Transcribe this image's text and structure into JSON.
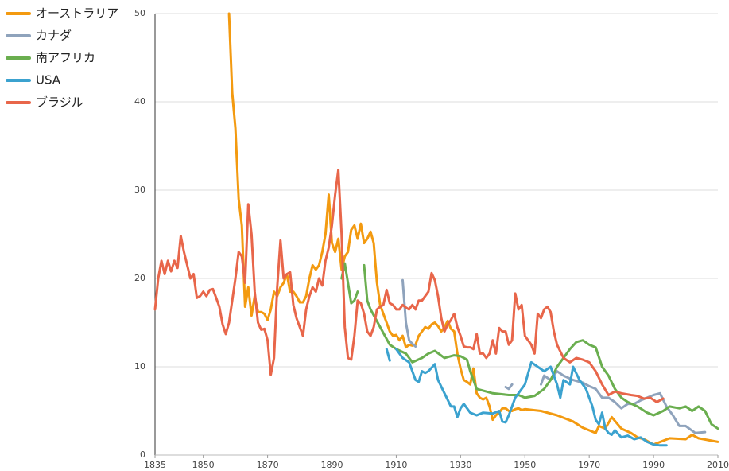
{
  "chart_data": {
    "type": "line",
    "xlim": [
      1835,
      2010
    ],
    "ylim": [
      0,
      50
    ],
    "xticks": [
      1835,
      1850,
      1870,
      1890,
      1910,
      1930,
      1950,
      1970,
      1990,
      2010
    ],
    "yticks": [
      0,
      10,
      20,
      30,
      40,
      50
    ],
    "grid": true,
    "legend": "top-left",
    "series": [
      {
        "name": "オーストラリア",
        "color": "#f39a10",
        "x": [
          1858,
          1859,
          1860,
          1861,
          1862,
          1863,
          1864,
          1865,
          1866,
          1867,
          1868,
          1869,
          1870,
          1871,
          1872,
          1873,
          1874,
          1875,
          1876,
          1877,
          1878,
          1879,
          1880,
          1881,
          1882,
          1883,
          1884,
          1885,
          1886,
          1887,
          1888,
          1889,
          1890,
          1891,
          1892,
          1893,
          1894,
          1895,
          1896,
          1897,
          1898,
          1899,
          1900,
          1901,
          1902,
          1903,
          1904,
          1905,
          1906,
          1907,
          1908,
          1909,
          1910,
          1911,
          1912,
          1913,
          1914,
          1915,
          1916,
          1917,
          1918,
          1919,
          1920,
          1921,
          1922,
          1923,
          1924,
          1925,
          1926,
          1927,
          1928,
          1929,
          1930,
          1931,
          1932,
          1933,
          1934,
          1935,
          1936,
          1937,
          1938,
          1939,
          1940,
          1941,
          1942,
          1943,
          1944,
          1945,
          1946,
          1947,
          1948,
          1949,
          1950,
          1955,
          1960,
          1965,
          1968,
          1970,
          1972,
          1973,
          1975,
          1977,
          1980,
          1983,
          1985,
          1987,
          1990,
          1995,
          2000,
          2002,
          2004,
          2010
        ],
        "values": [
          50,
          41,
          37,
          29,
          26,
          16.8,
          19,
          15.8,
          18,
          16.2,
          16.2,
          16,
          15.3,
          16.5,
          18.5,
          18,
          19,
          19.5,
          20.5,
          18.5,
          18.5,
          18,
          17.3,
          17.3,
          18,
          20,
          21.5,
          21,
          21.5,
          23,
          25,
          29.5,
          24,
          23,
          24.5,
          21,
          22.5,
          23,
          25.5,
          26,
          24.5,
          26.2,
          24,
          24.5,
          25.3,
          24,
          19.5,
          17,
          16,
          15,
          14,
          13.5,
          13.6,
          13,
          13.5,
          12.2,
          12.5,
          12.4,
          12.5,
          13.5,
          14,
          14.5,
          14.3,
          14.8,
          15,
          14.6,
          14,
          14.5,
          15.2,
          14.3,
          14,
          11.5,
          9.8,
          8.5,
          8.3,
          8,
          9.8,
          7,
          6.5,
          6.3,
          6.5,
          5.5,
          4,
          4.5,
          4.8,
          5.3,
          5.3,
          5,
          5,
          5.2,
          5.3,
          5.1,
          5.2,
          5,
          4.5,
          3.8,
          3.1,
          2.8,
          2.5,
          3.3,
          3,
          4.3,
          3,
          2.5,
          2,
          1.8,
          1.2,
          1.9,
          1.8,
          2.3,
          1.9,
          1.5
        ]
      },
      {
        "name": "カナダ",
        "color": "#8fa3bc",
        "x": [
          1912,
          1913,
          1914,
          1915,
          1916,
          1930,
          1944,
          1945,
          1946,
          1950,
          1955,
          1956,
          1958,
          1960,
          1962,
          1965,
          1968,
          1970,
          1972,
          1974,
          1976,
          1978,
          1980,
          1982,
          1984,
          1986,
          1988,
          1990,
          1992,
          1994,
          1996,
          1998,
          2000,
          2003,
          2006
        ],
        "values": [
          19.8,
          15,
          13,
          12.6,
          12.3,
          null,
          7.7,
          7.5,
          8,
          null,
          8,
          9,
          8.5,
          9.5,
          9,
          8.5,
          8.2,
          7.8,
          7.5,
          6.5,
          6.5,
          6,
          5.3,
          5.8,
          5.8,
          6.2,
          6.5,
          6.8,
          7,
          5.5,
          4.5,
          3.3,
          3.3,
          2.5,
          2.6
        ]
      },
      {
        "name": "南アフリカ",
        "color": "#6aae4f",
        "x": [
          1893,
          1894,
          1895,
          1896,
          1897,
          1898,
          1899,
          1900,
          1901,
          1902,
          1905,
          1908,
          1910,
          1913,
          1915,
          1918,
          1920,
          1922,
          1925,
          1928,
          1930,
          1932,
          1933,
          1935,
          1938,
          1940,
          1945,
          1948,
          1950,
          1953,
          1956,
          1958,
          1960,
          1962,
          1964,
          1966,
          1968,
          1970,
          1972,
          1974,
          1976,
          1978,
          1980,
          1982,
          1985,
          1988,
          1990,
          1993,
          1995,
          1998,
          2000,
          2002,
          2004,
          2006,
          2008,
          2010
        ],
        "values": [
          20,
          21.7,
          19.5,
          17.2,
          17.5,
          18.5,
          null,
          21.5,
          17.5,
          16.5,
          14.5,
          12.5,
          12,
          11.5,
          10.5,
          11,
          11.5,
          11.8,
          11,
          11.3,
          11.2,
          10.8,
          9.5,
          7.5,
          7.2,
          7,
          6.8,
          6.8,
          6.5,
          6.7,
          7.5,
          8.5,
          10,
          11,
          12,
          12.8,
          13,
          12.5,
          12.2,
          10,
          9,
          7.5,
          6.5,
          6,
          5.5,
          4.8,
          4.5,
          5,
          5.5,
          5.3,
          5.5,
          5,
          5.5,
          5,
          3.5,
          3
        ]
      },
      {
        "name": "USA",
        "color": "#3ba2cf",
        "x": [
          1907,
          1908,
          1909,
          1910,
          1912,
          1914,
          1916,
          1917,
          1918,
          1919,
          1920,
          1922,
          1923,
          1925,
          1927,
          1928,
          1929,
          1930,
          1931,
          1933,
          1935,
          1937,
          1940,
          1942,
          1943,
          1944,
          1945,
          1947,
          1948,
          1950,
          1952,
          1954,
          1956,
          1958,
          1960,
          1961,
          1962,
          1964,
          1965,
          1967,
          1969,
          1971,
          1972,
          1973,
          1974,
          1975,
          1976,
          1977,
          1978,
          1980,
          1982,
          1984,
          1986,
          1988,
          1990,
          1992,
          1994
        ],
        "values": [
          12,
          10.7,
          null,
          12,
          11,
          10.5,
          8.5,
          8.3,
          9.5,
          9.3,
          9.5,
          10.3,
          8.5,
          7,
          5.5,
          5.5,
          4.3,
          5.3,
          5.8,
          4.8,
          4.5,
          4.8,
          4.7,
          5,
          3.8,
          3.7,
          4.5,
          6.5,
          7,
          8,
          10.5,
          10,
          9.5,
          10,
          8,
          6.5,
          8.5,
          8,
          10,
          8.5,
          7.5,
          5.5,
          4,
          3.5,
          4.8,
          3,
          2.5,
          2.3,
          2.8,
          2,
          2.2,
          1.8,
          2,
          1.5,
          1.2,
          1.1,
          1.1
        ]
      },
      {
        "name": "ブラジル",
        "color": "#e8664a",
        "x": [
          1835,
          1836,
          1837,
          1838,
          1839,
          1840,
          1841,
          1842,
          1843,
          1844,
          1845,
          1846,
          1847,
          1848,
          1849,
          1850,
          1851,
          1852,
          1853,
          1854,
          1855,
          1856,
          1857,
          1858,
          1859,
          1860,
          1861,
          1862,
          1863,
          1864,
          1865,
          1866,
          1867,
          1868,
          1869,
          1870,
          1871,
          1872,
          1873,
          1874,
          1875,
          1876,
          1877,
          1878,
          1879,
          1880,
          1881,
          1882,
          1883,
          1884,
          1885,
          1886,
          1887,
          1888,
          1889,
          1890,
          1891,
          1892,
          1893,
          1894,
          1895,
          1896,
          1897,
          1898,
          1899,
          1900,
          1901,
          1902,
          1903,
          1904,
          1905,
          1906,
          1907,
          1908,
          1909,
          1910,
          1911,
          1912,
          1913,
          1914,
          1915,
          1916,
          1917,
          1918,
          1919,
          1920,
          1921,
          1922,
          1923,
          1924,
          1925,
          1926,
          1927,
          1928,
          1929,
          1930,
          1931,
          1932,
          1933,
          1934,
          1935,
          1936,
          1937,
          1938,
          1939,
          1940,
          1941,
          1942,
          1943,
          1944,
          1945,
          1946,
          1947,
          1948,
          1949,
          1950,
          1951,
          1952,
          1953,
          1954,
          1955,
          1956,
          1957,
          1958,
          1959,
          1960,
          1962,
          1964,
          1966,
          1968,
          1970,
          1972,
          1974,
          1976,
          1978,
          1980,
          1983,
          1985,
          1987,
          1989,
          1991,
          1993
        ],
        "values": [
          16.5,
          20,
          22,
          20.5,
          22,
          20.8,
          22,
          21.2,
          24.8,
          23,
          21.5,
          20,
          20.5,
          17.8,
          18,
          18.5,
          18,
          18.7,
          18.8,
          17.8,
          16.8,
          14.8,
          13.7,
          15,
          17.5,
          20,
          23,
          22.5,
          19.5,
          28.4,
          25,
          18.5,
          15,
          14.2,
          14.3,
          13,
          9.1,
          11,
          19,
          24.3,
          20,
          20.5,
          20.7,
          17,
          15.5,
          14.5,
          13.5,
          16.5,
          18,
          19,
          18.5,
          20,
          19.2,
          22,
          23.5,
          26,
          29.5,
          32.3,
          25,
          14.5,
          11,
          10.8,
          13.5,
          17.5,
          17.2,
          16,
          14,
          13.5,
          14.5,
          16.5,
          16.8,
          17,
          18.7,
          17.2,
          17,
          16.5,
          16.5,
          17,
          16.7,
          16.5,
          17,
          16.5,
          17.5,
          17.5,
          18,
          18.5,
          20.6,
          19.8,
          18,
          15.5,
          14,
          14.8,
          15.3,
          16,
          14.5,
          13.5,
          12.3,
          12.2,
          12.2,
          12,
          13.7,
          11.5,
          11.5,
          11,
          11.5,
          13,
          11.5,
          14.4,
          14,
          14,
          12.5,
          13,
          18.3,
          16.5,
          17,
          13.5,
          13,
          12.5,
          11.5,
          16,
          15.5,
          16.5,
          16.8,
          16.2,
          14,
          12.5,
          11,
          10.5,
          11,
          10.8,
          10.5,
          9.5,
          8,
          6.8,
          7.2,
          7,
          6.8,
          6.7,
          6.4,
          6.5,
          6,
          6.4
        ]
      }
    ]
  }
}
